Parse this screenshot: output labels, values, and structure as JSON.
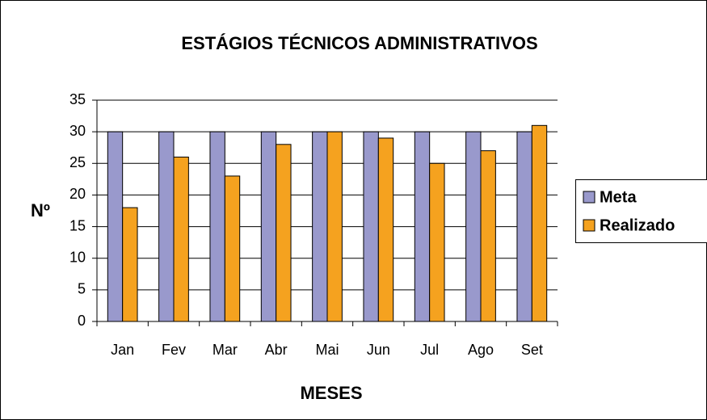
{
  "chart_data": {
    "type": "bar",
    "title": "ESTÁGIOS TÉCNICOS ADMINISTRATIVOS",
    "x_label": "MESES",
    "y_label": "Nº",
    "categories": [
      "Jan",
      "Fev",
      "Mar",
      "Abr",
      "Mai",
      "Jun",
      "Jul",
      "Ago",
      "Set"
    ],
    "series": [
      {
        "name": "Meta",
        "color": "#9999cc",
        "values": [
          30,
          30,
          30,
          30,
          30,
          30,
          30,
          30,
          30
        ]
      },
      {
        "name": "Realizado",
        "color": "#f5a21f",
        "values": [
          18,
          26,
          23,
          28,
          30,
          29,
          25,
          27,
          31
        ]
      }
    ],
    "ylim": [
      0,
      35
    ],
    "yticks": [
      0,
      5,
      10,
      15,
      20,
      25,
      30,
      35
    ],
    "grid": true,
    "legend": "right"
  }
}
